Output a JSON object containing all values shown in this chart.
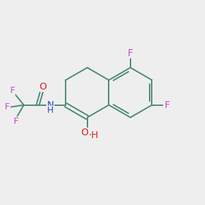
{
  "bg_color": "#eeeeee",
  "bond_color": "#4a8878",
  "atom_colors": {
    "F": "#cc44cc",
    "O": "#dd2222",
    "N": "#2244cc",
    "H_oh": "#dd2222",
    "H_nh": "#2244cc"
  },
  "bond_lw": 1.4,
  "font_size": 9.5
}
